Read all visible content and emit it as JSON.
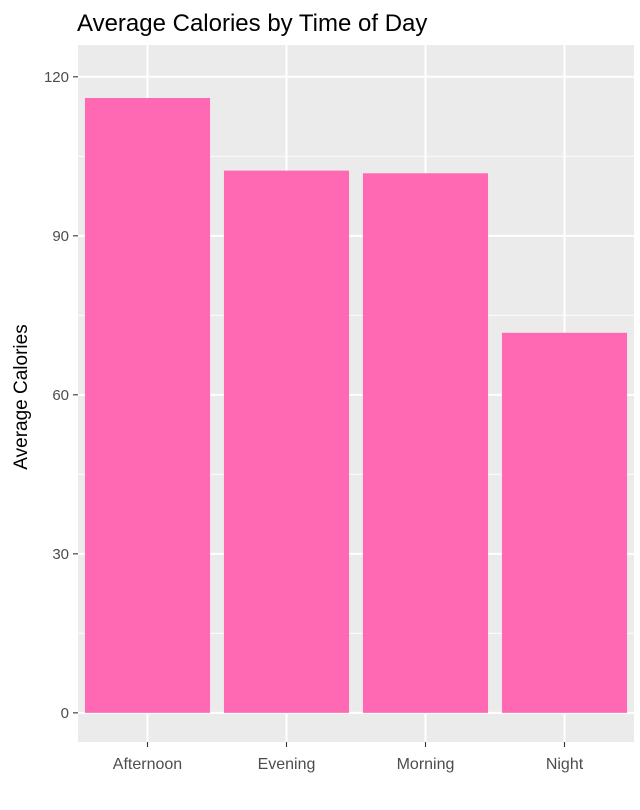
{
  "chart_data": {
    "type": "bar",
    "title": "Average Calories by Time of Day",
    "xlabel": "",
    "ylabel": "Average Calories",
    "categories": [
      "Afternoon",
      "Evening",
      "Morning",
      "Night"
    ],
    "values": [
      116,
      102.3,
      101.8,
      71.7
    ],
    "ylim": [
      -5.5,
      126
    ],
    "yticks": [
      0,
      30,
      60,
      90,
      120
    ],
    "ytick_labels": [
      "0",
      "30",
      "60",
      "90",
      "120"
    ],
    "grid": true,
    "legend": "none",
    "colors": {
      "bar": "#FF69B4",
      "panel": "#EBEBEB",
      "grid": "#FFFFFF",
      "text": "#000000",
      "tick_text": "#4D4D4D",
      "tick_mark": "#333333"
    }
  }
}
